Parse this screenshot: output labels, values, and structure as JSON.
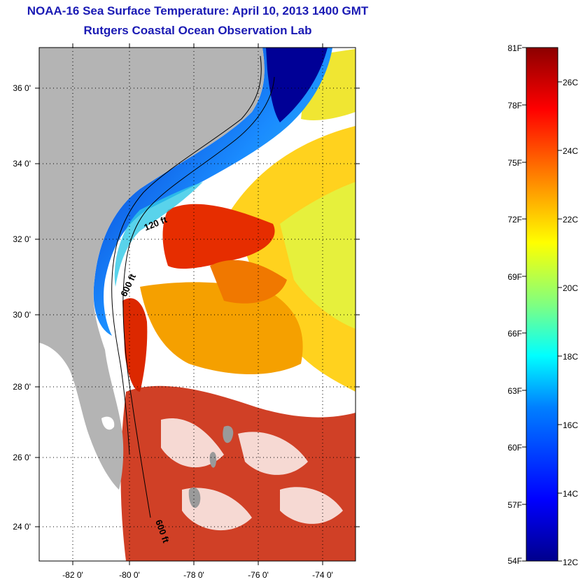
{
  "header": {
    "title": "NOAA-16 Sea Surface Temperature:  April 10, 2013 1400 GMT",
    "subtitle": "Rutgers Coastal Ocean Observation Lab"
  },
  "map": {
    "lat_ticks": [
      "36 0'",
      "34 0'",
      "32 0'",
      "30 0'",
      "28 0'",
      "26 0'",
      "24 0'"
    ],
    "lon_ticks": [
      "-82 0'",
      "-80 0'",
      "-78 0'",
      "-76 0'",
      "-74 0'"
    ],
    "contours": [
      "120 ft",
      "600 ft",
      "600 ft"
    ],
    "colors": {
      "land": "#b4b4b4",
      "no_data": "#ffffff",
      "cold": "#00008c",
      "warm": "#8c0000"
    }
  },
  "colorbar": {
    "fahrenheit": [
      "81F",
      "78F",
      "75F",
      "72F",
      "69F",
      "66F",
      "63F",
      "60F",
      "57F",
      "54F"
    ],
    "celsius": [
      "26C",
      "24C",
      "22C",
      "20C",
      "18C",
      "16C",
      "14C",
      "12C"
    ]
  }
}
